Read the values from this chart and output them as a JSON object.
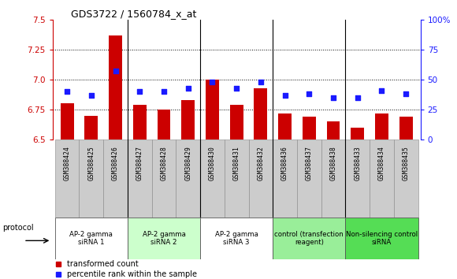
{
  "title": "GDS3722 / 1560784_x_at",
  "samples": [
    "GSM388424",
    "GSM388425",
    "GSM388426",
    "GSM388427",
    "GSM388428",
    "GSM388429",
    "GSM388430",
    "GSM388431",
    "GSM388432",
    "GSM388436",
    "GSM388437",
    "GSM388438",
    "GSM388433",
    "GSM388434",
    "GSM388435"
  ],
  "transformed_count": [
    6.8,
    6.7,
    7.37,
    6.79,
    6.75,
    6.83,
    7.0,
    6.79,
    6.93,
    6.72,
    6.69,
    6.65,
    6.6,
    6.72,
    6.69
  ],
  "percentile_rank": [
    40,
    37,
    57,
    40,
    40,
    43,
    48,
    43,
    48,
    37,
    38,
    35,
    35,
    41,
    38
  ],
  "ylim_left": [
    6.5,
    7.5
  ],
  "ylim_right": [
    0,
    100
  ],
  "yticks_left": [
    6.5,
    6.75,
    7.0,
    7.25,
    7.5
  ],
  "yticks_right": [
    0,
    25,
    50,
    75,
    100
  ],
  "bar_color": "#cc0000",
  "dot_color": "#1a1aff",
  "groups": [
    {
      "label": "AP-2 gamma\nsiRNA 1",
      "start": 0,
      "end": 3,
      "color": "#ffffff"
    },
    {
      "label": "AP-2 gamma\nsiRNA 2",
      "start": 3,
      "end": 6,
      "color": "#ccffcc"
    },
    {
      "label": "AP-2 gamma\nsiRNA 3",
      "start": 6,
      "end": 9,
      "color": "#ffffff"
    },
    {
      "label": "control (transfection\nreagent)",
      "start": 9,
      "end": 12,
      "color": "#99ee99"
    },
    {
      "label": "Non-silencing control\nsiRNA",
      "start": 12,
      "end": 15,
      "color": "#55dd55"
    }
  ],
  "protocol_label": "protocol",
  "legend_items": [
    {
      "label": "transformed count",
      "color": "#cc0000"
    },
    {
      "label": "percentile rank within the sample",
      "color": "#1a1aff"
    }
  ],
  "left_axis_color": "#cc0000",
  "right_axis_color": "#1a1aff",
  "tick_bg_color": "#cccccc",
  "group_border_color": "#555555"
}
